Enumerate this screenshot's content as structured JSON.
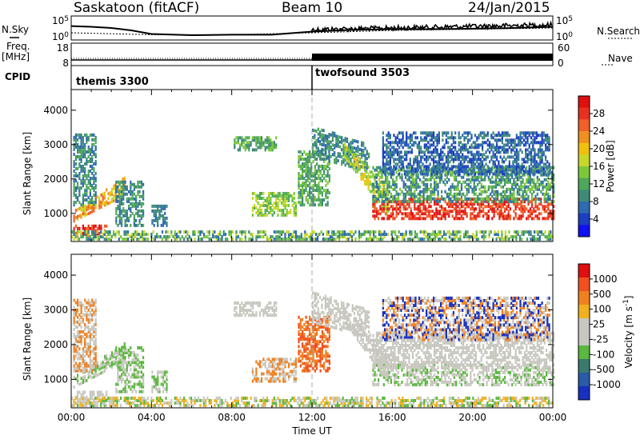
{
  "header": {
    "station": "Saskatoon (fitACF)",
    "beam": "Beam 10",
    "date": "24/Jan/2015"
  },
  "side_labels": {
    "nsky": "N.Sky",
    "freq_line1": "Freq.",
    "freq_line2": "[MHz]",
    "cpid": "CPID",
    "nsearch": "N.Search",
    "nave": "Nave"
  },
  "cpid_modes": [
    {
      "name": "themis 3300",
      "start_hour": 0
    },
    {
      "name": "twofsound 3503",
      "start_hour": 12
    }
  ],
  "chart_data": [
    {
      "type": "line",
      "title": "N.Sky / N.Search",
      "ylabel_left": "N.Sky",
      "ylabel_right": "N.Search",
      "left_ticks": [
        "10^5",
        "10^0"
      ],
      "right_ticks": [
        "10^5",
        "10^0"
      ],
      "xlim_hours": [
        0,
        24
      ],
      "series": [
        {
          "name": "N.Sky",
          "x": [
            0,
            1,
            2,
            3,
            4,
            6,
            8,
            10,
            12,
            14,
            16,
            18,
            20,
            22,
            24
          ],
          "y_rel": [
            0.58,
            0.55,
            0.5,
            0.4,
            0.25,
            0.2,
            0.22,
            0.22,
            0.35,
            0.42,
            0.45,
            0.45,
            0.47,
            0.5,
            0.55
          ]
        },
        {
          "name": "N.Search",
          "x": [
            0,
            4,
            8,
            12,
            16,
            20,
            24
          ],
          "y_rel": [
            0.3,
            0.22,
            0.22,
            0.3,
            0.4,
            0.45,
            0.5
          ]
        }
      ]
    },
    {
      "type": "line",
      "title": "Freq / Nave",
      "ylabel_left": "Freq. [MHz]",
      "ylabel_right": "Nave",
      "left_ticks": [
        "18",
        "8"
      ],
      "right_ticks": [
        "60",
        "0"
      ],
      "xlim_hours": [
        0,
        24
      ],
      "series": [
        {
          "name": "Freq.",
          "x": [
            0,
            12,
            12,
            24
          ],
          "y": [
            10.5,
            10.5,
            10.5,
            10.5
          ]
        },
        {
          "name": "Nave",
          "x": [
            0,
            12,
            12,
            24
          ],
          "y": [
            3,
            3,
            26,
            26
          ]
        }
      ]
    },
    {
      "type": "heatmap",
      "ylabel": "Slant Range [km]",
      "xlabel": "",
      "xlim_hours": [
        0,
        24
      ],
      "ylim_km": [
        180,
        4600
      ],
      "yticks": [
        1000,
        2000,
        3000,
        4000
      ],
      "colorbar_label": "Power [dB]",
      "colorbar_ticks": [
        4,
        8,
        12,
        16,
        20,
        24,
        28
      ],
      "colorbar_colors": [
        "#1010f0",
        "#1b3fc0",
        "#2f6bb0",
        "#3f8a78",
        "#4fa85a",
        "#7cc83a",
        "#c8d82a",
        "#f0c010",
        "#f09020",
        "#f06028",
        "#e83020",
        "#e01010"
      ],
      "colorbar_range": [
        0,
        32
      ]
    },
    {
      "type": "heatmap",
      "ylabel": "Slant Range [km]",
      "xlabel": "Time UT",
      "xlim_hours": [
        0,
        24
      ],
      "ylim_km": [
        180,
        4600
      ],
      "yticks": [
        1000,
        2000,
        3000,
        4000
      ],
      "xticks": [
        "00:00",
        "04:00",
        "08:00",
        "12:00",
        "16:00",
        "20:00",
        "00:00"
      ],
      "colorbar_label": "Velocity [m s^-1]",
      "colorbar_ticks": [
        "1000",
        "500",
        "100",
        "25",
        "-25",
        "-100",
        "-500",
        "-1000"
      ],
      "colorbar_colors": [
        "#1830c0",
        "#2a5aa8",
        "#3a7a70",
        "#5cb840",
        "#c8c8c0",
        "#c8c8c0",
        "#f0b020",
        "#f08020",
        "#f05020",
        "#e01010"
      ]
    }
  ]
}
